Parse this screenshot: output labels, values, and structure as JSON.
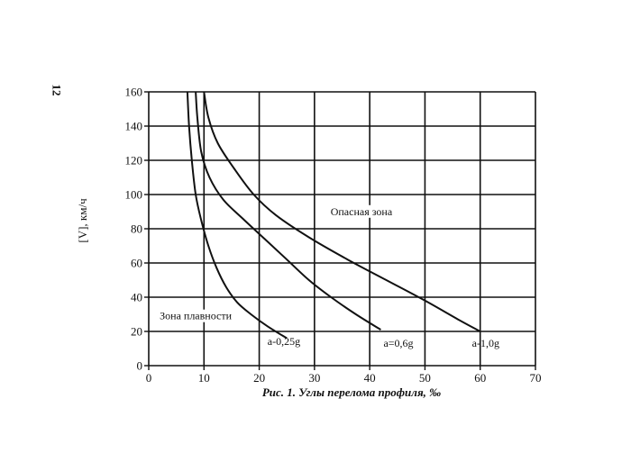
{
  "page_number": "12",
  "chart_data": {
    "type": "line",
    "title": "",
    "caption": "Рис. 1. Углы перелома профиля, ‰",
    "xlabel": "",
    "ylabel": "[V], км/ч",
    "xlim": [
      0,
      70
    ],
    "ylim": [
      0,
      160
    ],
    "x_ticks": [
      0,
      10,
      20,
      30,
      40,
      50,
      60,
      70
    ],
    "y_ticks": [
      0,
      20,
      40,
      60,
      80,
      100,
      120,
      140,
      160
    ],
    "grid": true,
    "series": [
      {
        "name": "a-0,25g",
        "x": [
          7,
          7.3,
          7.8,
          8.5,
          9.5,
          10.8,
          12.3,
          14,
          16,
          18.5,
          21.5,
          25
        ],
        "y": [
          160,
          140,
          120,
          100,
          85,
          70,
          57,
          46,
          37,
          30,
          23,
          16
        ]
      },
      {
        "name": "a=0,6g",
        "x": [
          8.5,
          8.8,
          9.5,
          11,
          13.5,
          17,
          21,
          25,
          29,
          33,
          37.5,
          42
        ],
        "y": [
          160,
          145,
          125,
          110,
          97,
          86,
          74,
          62,
          50,
          40,
          30,
          21
        ]
      },
      {
        "name": "a-1,0g",
        "x": [
          10,
          10.8,
          12.5,
          15.5,
          19,
          23,
          29,
          36,
          43,
          50,
          56,
          60
        ],
        "y": [
          160,
          145,
          130,
          115,
          100,
          88,
          75,
          62,
          50,
          38,
          27,
          20
        ]
      }
    ],
    "annotations": [
      "Опасная зона",
      "Зона плавности"
    ]
  }
}
